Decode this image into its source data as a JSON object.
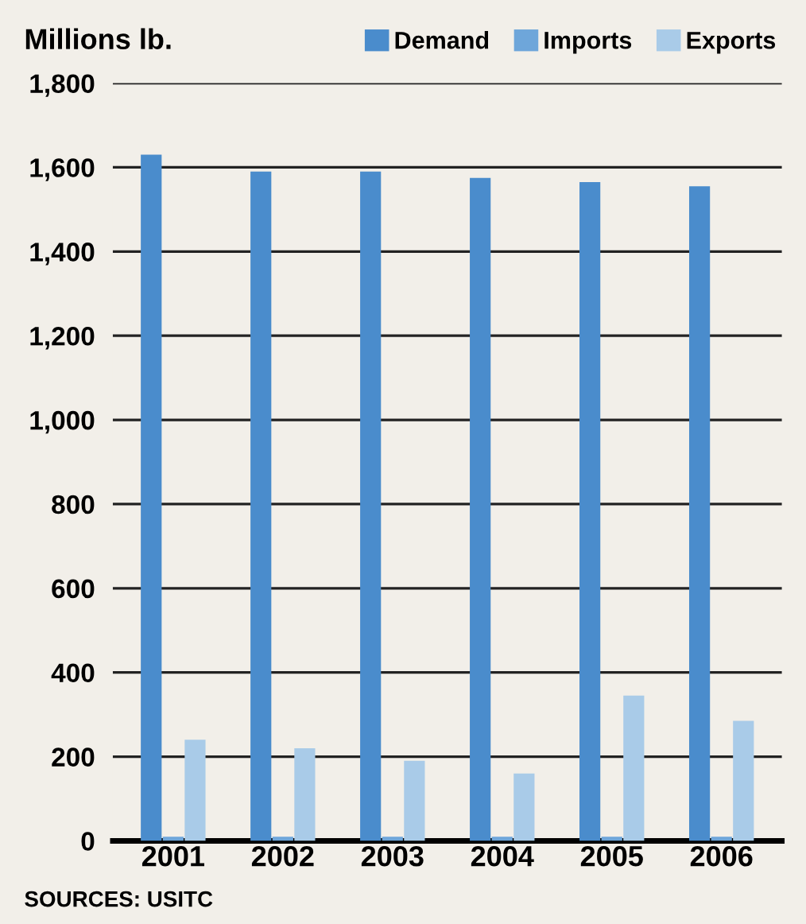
{
  "chart_data": {
    "type": "bar",
    "ylabel": "Millions lb.",
    "categories": [
      "2001",
      "2002",
      "2003",
      "2004",
      "2005",
      "2006"
    ],
    "series": [
      {
        "name": "Demand",
        "color": "#4a8ccc",
        "values": [
          1630,
          1590,
          1590,
          1575,
          1565,
          1555
        ]
      },
      {
        "name": "Imports",
        "color": "#6ea6da",
        "values": [
          10,
          10,
          10,
          10,
          10,
          10
        ]
      },
      {
        "name": "Exports",
        "color": "#a9cbe8",
        "values": [
          240,
          220,
          190,
          160,
          345,
          285
        ]
      }
    ],
    "ylim": [
      0,
      1800
    ],
    "yticks": [
      {
        "value": 0,
        "label": "0"
      },
      {
        "value": 200,
        "label": "200"
      },
      {
        "value": 400,
        "label": "400"
      },
      {
        "value": 600,
        "label": "600"
      },
      {
        "value": 800,
        "label": "800"
      },
      {
        "value": 1000,
        "label": "1,000"
      },
      {
        "value": 1200,
        "label": "1,200"
      },
      {
        "value": 1400,
        "label": "1,400"
      },
      {
        "value": 1600,
        "label": "1,600"
      },
      {
        "value": 1800,
        "label": "1,800"
      }
    ],
    "grid": "y",
    "legend": "top right",
    "annotations": [
      "SOURCES: USITC"
    ]
  }
}
